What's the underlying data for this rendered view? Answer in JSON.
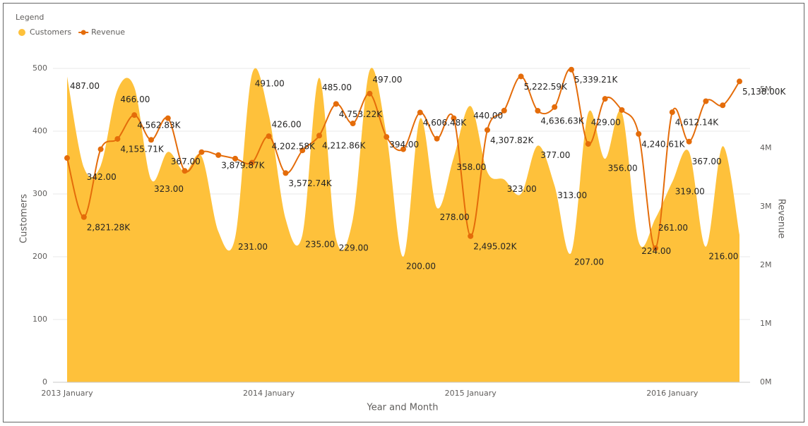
{
  "chart_data": {
    "type": "combo",
    "legend_title": "Legend",
    "x_label": "Year and Month",
    "y_label": "Customers",
    "y2_label": "Revenue",
    "categories": [
      "2013 January",
      null,
      null,
      null,
      null,
      null,
      null,
      null,
      null,
      null,
      null,
      null,
      "2014 January",
      null,
      null,
      null,
      null,
      null,
      null,
      null,
      null,
      null,
      null,
      null,
      "2015 January",
      null,
      null,
      null,
      null,
      null,
      null,
      null,
      null,
      null,
      null,
      null,
      "2016 January",
      null,
      null,
      null,
      null
    ],
    "ylim": [
      0,
      500
    ],
    "yticks": [
      0,
      100,
      200,
      300,
      400,
      500
    ],
    "y2lim": [
      0,
      5360000
    ],
    "y2ticks": [
      {
        "value": 0,
        "label": "0M"
      },
      {
        "value": 1000000,
        "label": "1M"
      },
      {
        "value": 2000000,
        "label": "2M"
      },
      {
        "value": 3000000,
        "label": "3M"
      },
      {
        "value": 4000000,
        "label": "4M"
      },
      {
        "value": 5000000,
        "label": "5M"
      }
    ],
    "grid": true,
    "legend": "top-left",
    "series": [
      {
        "name": "Customers",
        "kind": "area",
        "color": "#fec13b",
        "values": [
          487,
          342,
          345,
          466,
          470,
          323,
          367,
          335,
          360,
          240,
          231,
          491,
          426,
          260,
          235,
          485,
          229,
          260,
          497,
          394,
          200,
          420,
          278,
          358,
          440,
          335,
          323,
          300,
          377,
          313,
          207,
          429,
          356,
          430,
          224,
          261,
          319,
          367,
          216,
          376,
          235
        ],
        "value_labels": [
          "487.00",
          "342.00",
          null,
          "466.00",
          null,
          "323.00",
          "367.00",
          null,
          null,
          null,
          "231.00",
          "491.00",
          "426.00",
          null,
          "235.00",
          "485.00",
          "229.00",
          null,
          "497.00",
          "394.00",
          "200.00",
          null,
          "278.00",
          "358.00",
          "440.00",
          null,
          "323.00",
          null,
          "377.00",
          "313.00",
          "207.00",
          "429.00",
          "356.00",
          null,
          "224.00",
          "261.00",
          "319.00",
          "367.00",
          "216.00",
          null,
          null
        ]
      },
      {
        "name": "Revenue",
        "kind": "line",
        "axis": "y2",
        "color": "#e46c0a",
        "values": [
          3830000,
          2821280,
          3980000,
          4155710,
          4562830,
          4140000,
          4510000,
          3610000,
          3930000,
          3879870,
          3820000,
          3750000,
          4202580,
          3572740,
          3960000,
          4212860,
          4753220,
          4420000,
          4930000,
          4190000,
          3980000,
          4606480,
          4160000,
          4510000,
          2495020,
          4307820,
          4640000,
          5222590,
          4636630,
          4700000,
          5339210,
          4070000,
          4840000,
          4650000,
          4240610,
          2290000,
          4612140,
          4110000,
          4800000,
          4730000,
          5138000
        ],
        "value_labels": [
          null,
          "2,821.28K",
          null,
          "4,155.71K",
          "4,562.83K",
          null,
          null,
          null,
          null,
          "3,879.87K",
          null,
          null,
          "4,202.58K",
          "3,572.74K",
          null,
          "4,212.86K",
          "4,753.22K",
          null,
          null,
          null,
          null,
          "4,606.48K",
          null,
          null,
          "2,495.02K",
          "4,307.82K",
          null,
          "5,222.59K",
          "4,636.63K",
          null,
          "5,339.21K",
          null,
          null,
          null,
          "4,240.61K",
          null,
          "4,612.14K",
          null,
          null,
          null,
          "5,138.00K"
        ]
      }
    ]
  }
}
